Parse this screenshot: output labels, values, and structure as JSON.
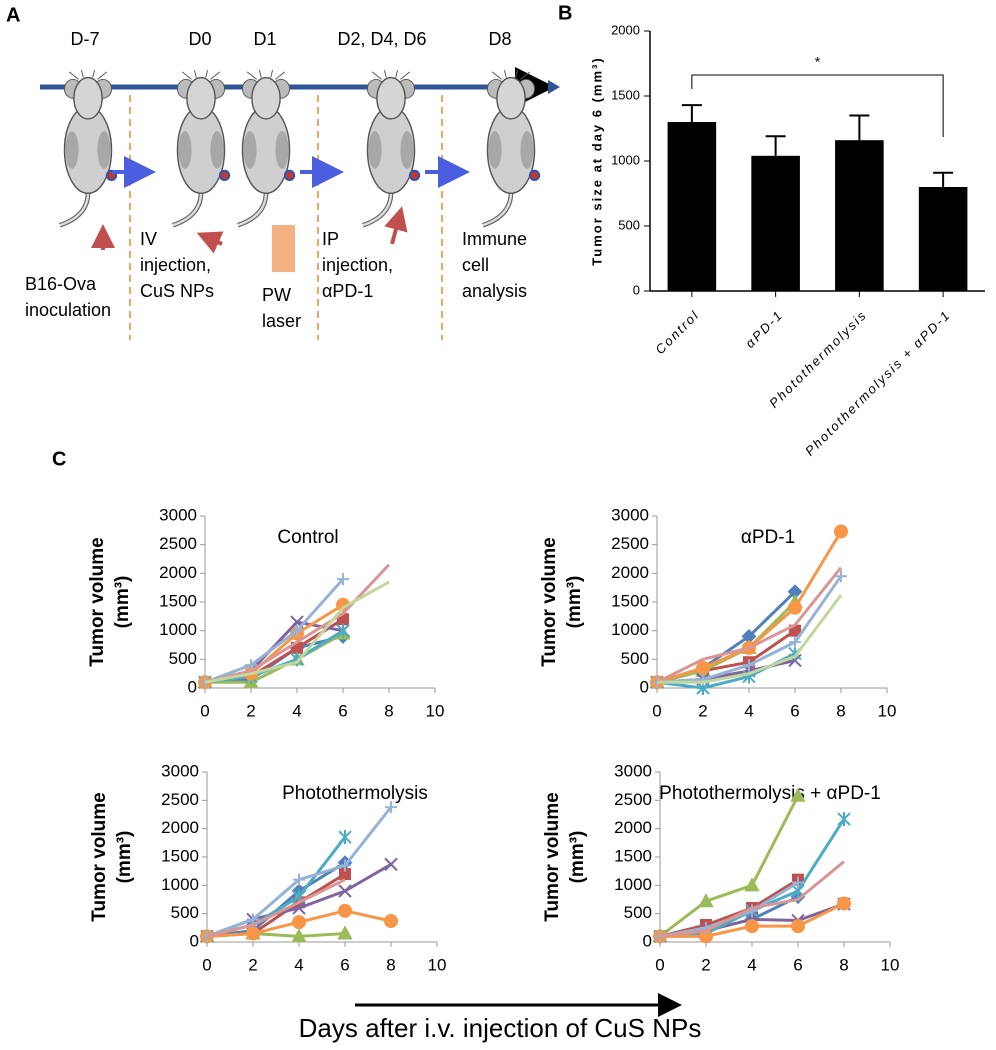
{
  "panel_labels": [
    "A",
    "B",
    "C"
  ],
  "timeline": {
    "days": [
      "D-7",
      "D0",
      "D1",
      "D2, D4, D6",
      "D8"
    ],
    "steps": [
      [
        "B16-Ova",
        "inoculation"
      ],
      [
        "IV",
        "injection,",
        "CuS NPs"
      ],
      [
        "PW",
        "laser"
      ],
      [
        "IP",
        "injection,",
        "αPD-1"
      ],
      [
        "Immune",
        "cell",
        "analysis"
      ]
    ]
  },
  "c_x_label": "Days after i.v. injection of CuS NPs",
  "chart_data": [
    {
      "type": "bar",
      "y_label": "Tumor size at day 6 (mm³)",
      "categories": [
        "Control",
        "αPD-1",
        "Photothermolysis",
        "Photothermolysis + αPD-1"
      ],
      "values": [
        1300,
        1040,
        1160,
        800
      ],
      "errors": [
        130,
        150,
        190,
        110
      ],
      "color": "#000000",
      "ylim": [
        0,
        2000
      ],
      "yticks": [
        0,
        500,
        1000,
        1500,
        2000
      ],
      "significance": "*"
    },
    {
      "type": "line",
      "title": "Control",
      "y_label": [
        "Tumor volume",
        "(mm³)"
      ],
      "x": [
        0,
        2,
        4,
        6,
        8
      ],
      "xlim": [
        0,
        10
      ],
      "xticks": [
        0,
        2,
        4,
        6,
        8,
        10
      ],
      "ylim": [
        0,
        3000
      ],
      "yticks": [
        0,
        500,
        1000,
        1500,
        2000,
        2500,
        3000
      ],
      "series": [
        {
          "color": "#4F81BD",
          "marker": "diamond",
          "values": [
            100,
            150,
            700,
            900,
            null
          ]
        },
        {
          "color": "#C0504D",
          "marker": "square",
          "values": [
            100,
            200,
            700,
            1200,
            null
          ]
        },
        {
          "color": "#9BBB59",
          "marker": "triangle",
          "values": [
            100,
            100,
            500,
            950,
            null
          ]
        },
        {
          "color": "#8064A2",
          "marker": "x",
          "values": [
            100,
            300,
            1150,
            1000,
            null
          ]
        },
        {
          "color": "#4BACC6",
          "marker": "star",
          "values": [
            100,
            200,
            500,
            1000,
            null
          ]
        },
        {
          "color": "#F79646",
          "marker": "circle",
          "values": [
            100,
            250,
            950,
            1450,
            null
          ]
        },
        {
          "color": "#95B3D7",
          "marker": "plus",
          "values": [
            100,
            400,
            1000,
            1900,
            null
          ]
        },
        {
          "color": "#D99694",
          "marker": "none",
          "values": [
            100,
            300,
            800,
            1300,
            2150
          ]
        },
        {
          "color": "#C3D69B",
          "marker": "none",
          "values": [
            100,
            250,
            450,
            1400,
            1850
          ]
        }
      ]
    },
    {
      "type": "line",
      "title": "αPD-1",
      "y_label": [
        "Tumor volume",
        "(mm³)"
      ],
      "x": [
        0,
        2,
        4,
        6,
        8
      ],
      "xlim": [
        0,
        10
      ],
      "xticks": [
        0,
        2,
        4,
        6,
        8,
        10
      ],
      "ylim": [
        0,
        3000
      ],
      "yticks": [
        0,
        500,
        1000,
        1500,
        2000,
        2500,
        3000
      ],
      "series": [
        {
          "color": "#4F81BD",
          "marker": "diamond",
          "values": [
            100,
            350,
            900,
            1680,
            null
          ]
        },
        {
          "color": "#C0504D",
          "marker": "square",
          "values": [
            100,
            300,
            450,
            1000,
            null
          ]
        },
        {
          "color": "#9BBB59",
          "marker": "triangle",
          "values": [
            100,
            300,
            700,
            1500,
            null
          ]
        },
        {
          "color": "#8064A2",
          "marker": "x",
          "values": [
            100,
            150,
            300,
            480,
            null
          ]
        },
        {
          "color": "#4BACC6",
          "marker": "star",
          "values": [
            100,
            0,
            200,
            600,
            null
          ]
        },
        {
          "color": "#F79646",
          "marker": "circle",
          "values": [
            100,
            350,
            700,
            1400,
            2730
          ]
        },
        {
          "color": "#95B3D7",
          "marker": "plus",
          "values": [
            100,
            150,
            400,
            800,
            1950
          ]
        },
        {
          "color": "#D99694",
          "marker": "none",
          "values": [
            100,
            500,
            700,
            1100,
            2100
          ]
        },
        {
          "color": "#C3D69B",
          "marker": "none",
          "values": [
            100,
            100,
            250,
            550,
            1620
          ]
        }
      ]
    },
    {
      "type": "line",
      "title": "Photothermolysis",
      "y_label": [
        "Tumor volume",
        "(mm³)"
      ],
      "x": [
        0,
        2,
        4,
        6,
        8
      ],
      "xlim": [
        0,
        10
      ],
      "xticks": [
        0,
        2,
        4,
        6,
        8,
        10
      ],
      "ylim": [
        0,
        3000
      ],
      "yticks": [
        0,
        500,
        1000,
        1500,
        2000,
        2500,
        3000
      ],
      "series": [
        {
          "color": "#4F81BD",
          "marker": "diamond",
          "values": [
            100,
            200,
            900,
            1400,
            null
          ]
        },
        {
          "color": "#C0504D",
          "marker": "square",
          "values": [
            100,
            150,
            700,
            1200,
            null
          ]
        },
        {
          "color": "#9BBB59",
          "marker": "triangle",
          "values": [
            100,
            150,
            100,
            150,
            null
          ]
        },
        {
          "color": "#8064A2",
          "marker": "x",
          "values": [
            100,
            400,
            600,
            900,
            1370
          ]
        },
        {
          "color": "#4BACC6",
          "marker": "star",
          "values": [
            100,
            300,
            800,
            1850,
            null
          ]
        },
        {
          "color": "#F79646",
          "marker": "circle",
          "values": [
            100,
            150,
            350,
            550,
            370
          ]
        },
        {
          "color": "#95B3D7",
          "marker": "plus",
          "values": [
            100,
            400,
            1100,
            1350,
            2380
          ]
        },
        {
          "color": "#D99694",
          "marker": "none",
          "values": [
            100,
            300,
            700,
            1100,
            null
          ]
        }
      ]
    },
    {
      "type": "line",
      "title": "Photothermolysis + αPD-1",
      "y_label": [
        "Tumor volume",
        "(mm³)"
      ],
      "x": [
        0,
        2,
        4,
        6,
        8
      ],
      "xlim": [
        0,
        10
      ],
      "xticks": [
        0,
        2,
        4,
        6,
        8,
        10
      ],
      "ylim": [
        0,
        3000
      ],
      "yticks": [
        0,
        500,
        1000,
        1500,
        2000,
        2500,
        3000
      ],
      "series": [
        {
          "color": "#4F81BD",
          "marker": "diamond",
          "values": [
            100,
            200,
            400,
            800,
            null
          ]
        },
        {
          "color": "#C0504D",
          "marker": "square",
          "values": [
            100,
            300,
            600,
            1100,
            null
          ]
        },
        {
          "color": "#9BBB59",
          "marker": "triangle",
          "values": [
            100,
            720,
            1000,
            2580,
            null
          ]
        },
        {
          "color": "#8064A2",
          "marker": "x",
          "values": [
            100,
            200,
            400,
            380,
            670
          ]
        },
        {
          "color": "#4BACC6",
          "marker": "star",
          "values": [
            100,
            150,
            550,
            900,
            2170
          ]
        },
        {
          "color": "#F79646",
          "marker": "circle",
          "values": [
            100,
            100,
            280,
            280,
            680
          ]
        },
        {
          "color": "#95B3D7",
          "marker": "plus",
          "values": [
            100,
            250,
            550,
            1050,
            null
          ]
        },
        {
          "color": "#D99694",
          "marker": "none",
          "values": [
            100,
            200,
            600,
            750,
            1420
          ]
        }
      ]
    }
  ]
}
